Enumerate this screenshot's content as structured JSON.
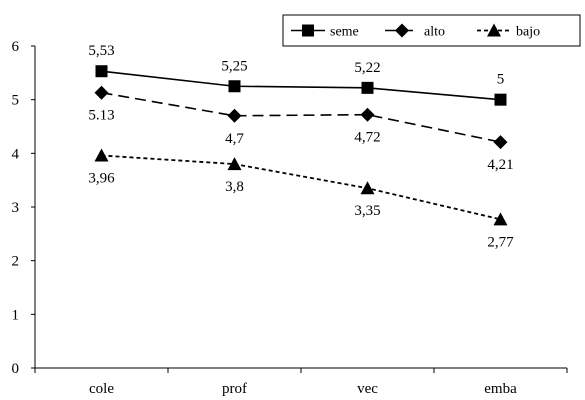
{
  "chart_data": {
    "type": "line",
    "categories": [
      "cole",
      "prof",
      "vec",
      "emba"
    ],
    "ylim": [
      0,
      6
    ],
    "yticks": [
      0,
      1,
      2,
      3,
      4,
      5,
      6
    ],
    "grid": false,
    "legend_position": "top-right",
    "series": [
      {
        "name": "seme",
        "values": [
          5.53,
          5.25,
          5.22,
          5
        ],
        "labels": [
          "5,53",
          "5,25",
          "5,22",
          "5"
        ],
        "marker": "square",
        "line": "solid",
        "label_position": "above"
      },
      {
        "name": "alto",
        "values": [
          5.13,
          4.7,
          4.72,
          4.21
        ],
        "labels": [
          "5.13",
          "4,7",
          "4,72",
          "4,21"
        ],
        "marker": "diamond",
        "line": "long-dash",
        "label_position": "below"
      },
      {
        "name": "bajo",
        "values": [
          3.96,
          3.8,
          3.35,
          2.77
        ],
        "labels": [
          "3,96",
          "3,8",
          "3,35",
          "2,77"
        ],
        "marker": "triangle",
        "line": "short-dash",
        "label_position": "below"
      }
    ],
    "colors": {
      "line": "#000000",
      "background": "#ffffff"
    }
  }
}
